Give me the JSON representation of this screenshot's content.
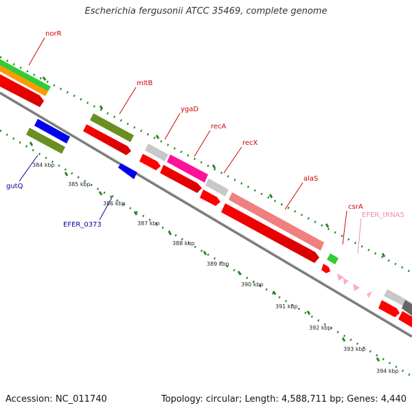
{
  "title": "Escherichia fergusonii ATCC 35469, complete genome",
  "footer": {
    "accession": "Accession: NC_011740",
    "summary": "Topology: circular; Length: 4,588,711 bp; Genes: 4,440"
  },
  "colors": {
    "gene_label": "#cc0000",
    "minus_label": "#000099",
    "trna_label": "#ee88bb",
    "tick": "#228822",
    "backbone": "#777777"
  },
  "gene_labels": [
    "norR",
    "mltB",
    "ygaD",
    "recA",
    "recX",
    "alaS",
    "csrA",
    "EFER_tRNA5",
    "gutQ",
    "EFER_0373"
  ],
  "kbp_labels": [
    "384 kbp",
    "385 kbp",
    "386 kbp",
    "387 kbp",
    "388 kbp",
    "389 kbp",
    "390 kbp",
    "391 kbp",
    "392 kbp",
    "393 kbp",
    "394 kbp"
  ]
}
